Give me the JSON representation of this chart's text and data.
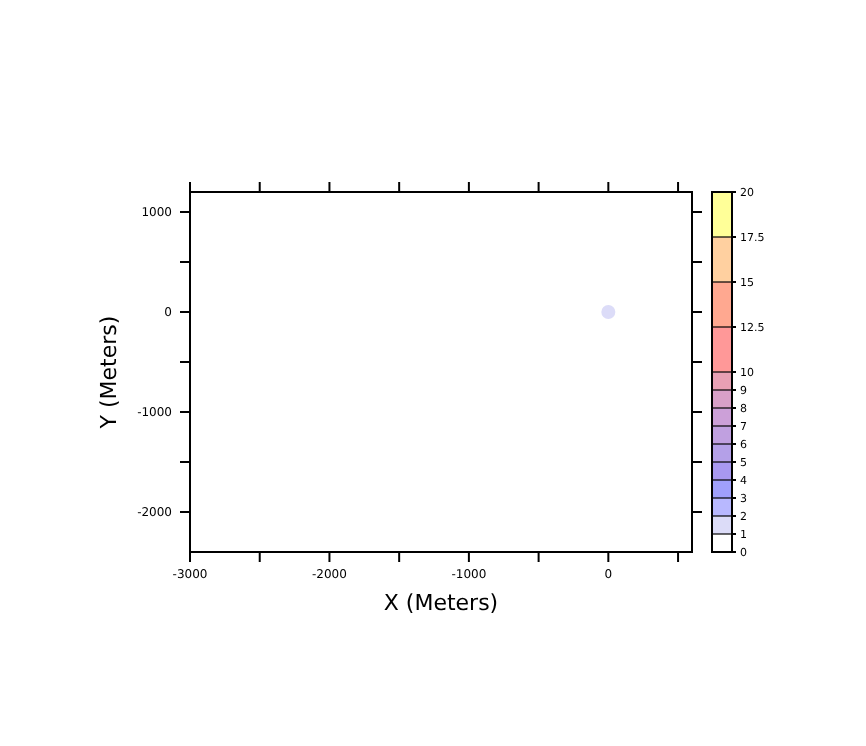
{
  "chart_data": {
    "type": "scatter",
    "xlabel": "X (Meters)",
    "ylabel": "Y (Meters)",
    "x": [
      0
    ],
    "values": [
      0
    ],
    "cvalues": [
      1.5
    ],
    "marker": "circle",
    "xlim": [
      -3000,
      600
    ],
    "xticks": [
      -3000,
      {
        "value": -2500,
        "label": null
      },
      -2000,
      {
        "value": -1500,
        "label": null
      },
      -1000,
      {
        "value": -500,
        "label": null
      },
      0,
      {
        "value": 500,
        "label": null
      }
    ],
    "ylim": [
      -2400,
      1200
    ],
    "yticks": [
      {
        "value": -2000,
        "label": "-2000"
      },
      {
        "value": -1500,
        "label": null
      },
      {
        "value": -1000,
        "label": "-1000"
      },
      {
        "value": -500,
        "label": null
      },
      0,
      {
        "value": 500,
        "label": null
      },
      1000
    ],
    "clim": [
      0,
      20
    ],
    "cticks": [
      0,
      1,
      2,
      3,
      4,
      5,
      6,
      7,
      8,
      9,
      10,
      12.5,
      15,
      17.5,
      20
    ],
    "grid": false,
    "legend": false
  }
}
